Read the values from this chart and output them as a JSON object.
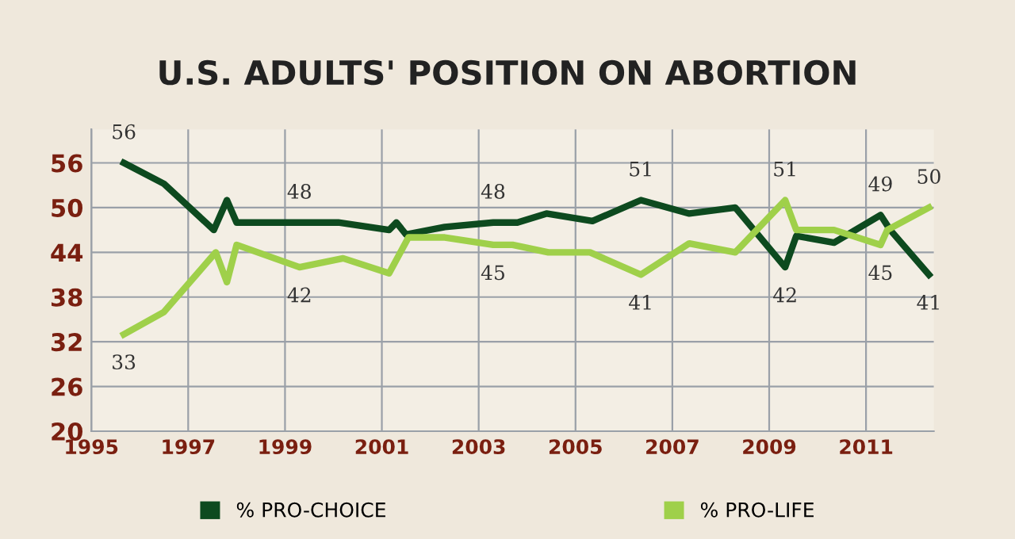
{
  "chart_data": {
    "type": "line",
    "title": "U.S. ADULTS' POSITION ON ABORTION",
    "xlim": [
      1995,
      2012.4
    ],
    "xticks": [
      1995,
      1997,
      1999,
      2001,
      2003,
      2005,
      2007,
      2009,
      2011
    ],
    "ylim": [
      20,
      60.5
    ],
    "yticks": [
      20,
      26,
      32,
      38,
      44,
      50,
      56
    ],
    "grid": true,
    "legend": "bottom",
    "series": [
      {
        "name": "% PRO-CHOICE",
        "color": "#0d4a1f",
        "x": [
          1995.67,
          1996.5,
          1997.53,
          1997.8,
          1998.0,
          2000.1,
          2001.15,
          2001.3,
          2001.5,
          2002.3,
          2003.3,
          2003.8,
          2004.4,
          2005.35,
          2006.35,
          2007.35,
          2008.3,
          2009.33,
          2009.56,
          2010.34,
          2011.3,
          2011.5,
          2012.3
        ],
        "values": [
          56,
          53.2,
          47,
          51,
          48,
          48,
          47,
          48,
          46.4,
          47.4,
          48,
          48,
          49.2,
          48.2,
          51,
          49.2,
          50,
          42,
          46.2,
          45.3,
          49,
          47,
          41
        ]
      },
      {
        "name": "% PRO-LIFE",
        "color": "#9fd04a",
        "x": [
          1995.67,
          1996.5,
          1997.57,
          1997.8,
          1998.0,
          1999.3,
          2000.2,
          2001.15,
          2001.55,
          2002.3,
          2003.3,
          2003.7,
          2004.44,
          2005.3,
          2006.35,
          2007.35,
          2008.3,
          2009.33,
          2009.56,
          2010.34,
          2011.3,
          2011.44,
          2012.3
        ],
        "values": [
          33,
          36,
          44,
          40,
          45,
          42,
          43.2,
          41.2,
          46,
          46,
          45,
          45,
          44,
          44,
          41,
          45.2,
          44,
          51,
          47,
          47,
          45,
          47,
          50
        ]
      }
    ],
    "annotations": [
      {
        "text": "56",
        "x": 1995.67,
        "y": 56
      },
      {
        "text": "33",
        "x": 1995.67,
        "y": 33
      },
      {
        "text": "48",
        "x": 1999.3,
        "y": 48
      },
      {
        "text": "42",
        "x": 1999.3,
        "y": 42
      },
      {
        "text": "48",
        "x": 2003.3,
        "y": 48
      },
      {
        "text": "45",
        "x": 2003.3,
        "y": 45
      },
      {
        "text": "51",
        "x": 2006.35,
        "y": 51
      },
      {
        "text": "41",
        "x": 2006.35,
        "y": 41
      },
      {
        "text": "51",
        "x": 2009.33,
        "y": 51
      },
      {
        "text": "42",
        "x": 2009.33,
        "y": 42
      },
      {
        "text": "49",
        "x": 2011.3,
        "y": 49
      },
      {
        "text": "45",
        "x": 2011.3,
        "y": 45
      },
      {
        "text": "50",
        "x": 2012.3,
        "y": 50
      },
      {
        "text": "41",
        "x": 2012.3,
        "y": 41
      }
    ]
  }
}
